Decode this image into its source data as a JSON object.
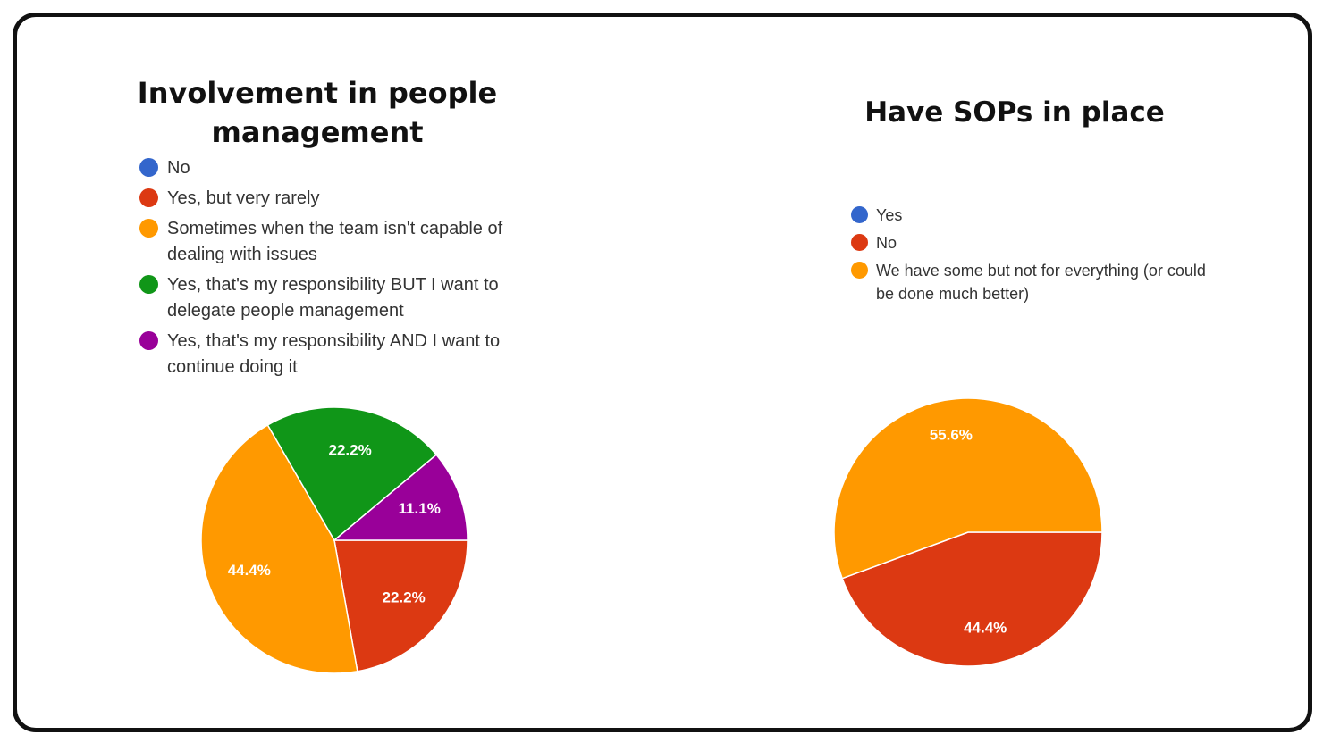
{
  "chart_data": [
    {
      "type": "pie",
      "title": "Involvement in people management",
      "legend_position": "top",
      "categories": [
        "No",
        "Yes, but very rarely",
        "Sometimes when the team isn't capable of dealing with issues",
        "Yes, that's my responsibility BUT I want to delegate people management",
        "Yes, that's my responsibility AND I want to continue doing it"
      ],
      "values": [
        0,
        22.2,
        44.4,
        22.2,
        11.1
      ],
      "data_labels": [
        "",
        "22.2%",
        "44.4%",
        "22.2%",
        "11.1%"
      ],
      "colors": [
        "#3366cc",
        "#dc3912",
        "#ff9900",
        "#109618",
        "#990099"
      ]
    },
    {
      "type": "pie",
      "title": "Have SOPs in place",
      "legend_position": "top",
      "categories": [
        "Yes",
        "No",
        "We have some but not for everything (or could be done much better)"
      ],
      "values": [
        0,
        44.4,
        55.6
      ],
      "data_labels": [
        "",
        "44.4%",
        "55.6%"
      ],
      "colors": [
        "#3366cc",
        "#dc3912",
        "#ff9900"
      ]
    }
  ]
}
